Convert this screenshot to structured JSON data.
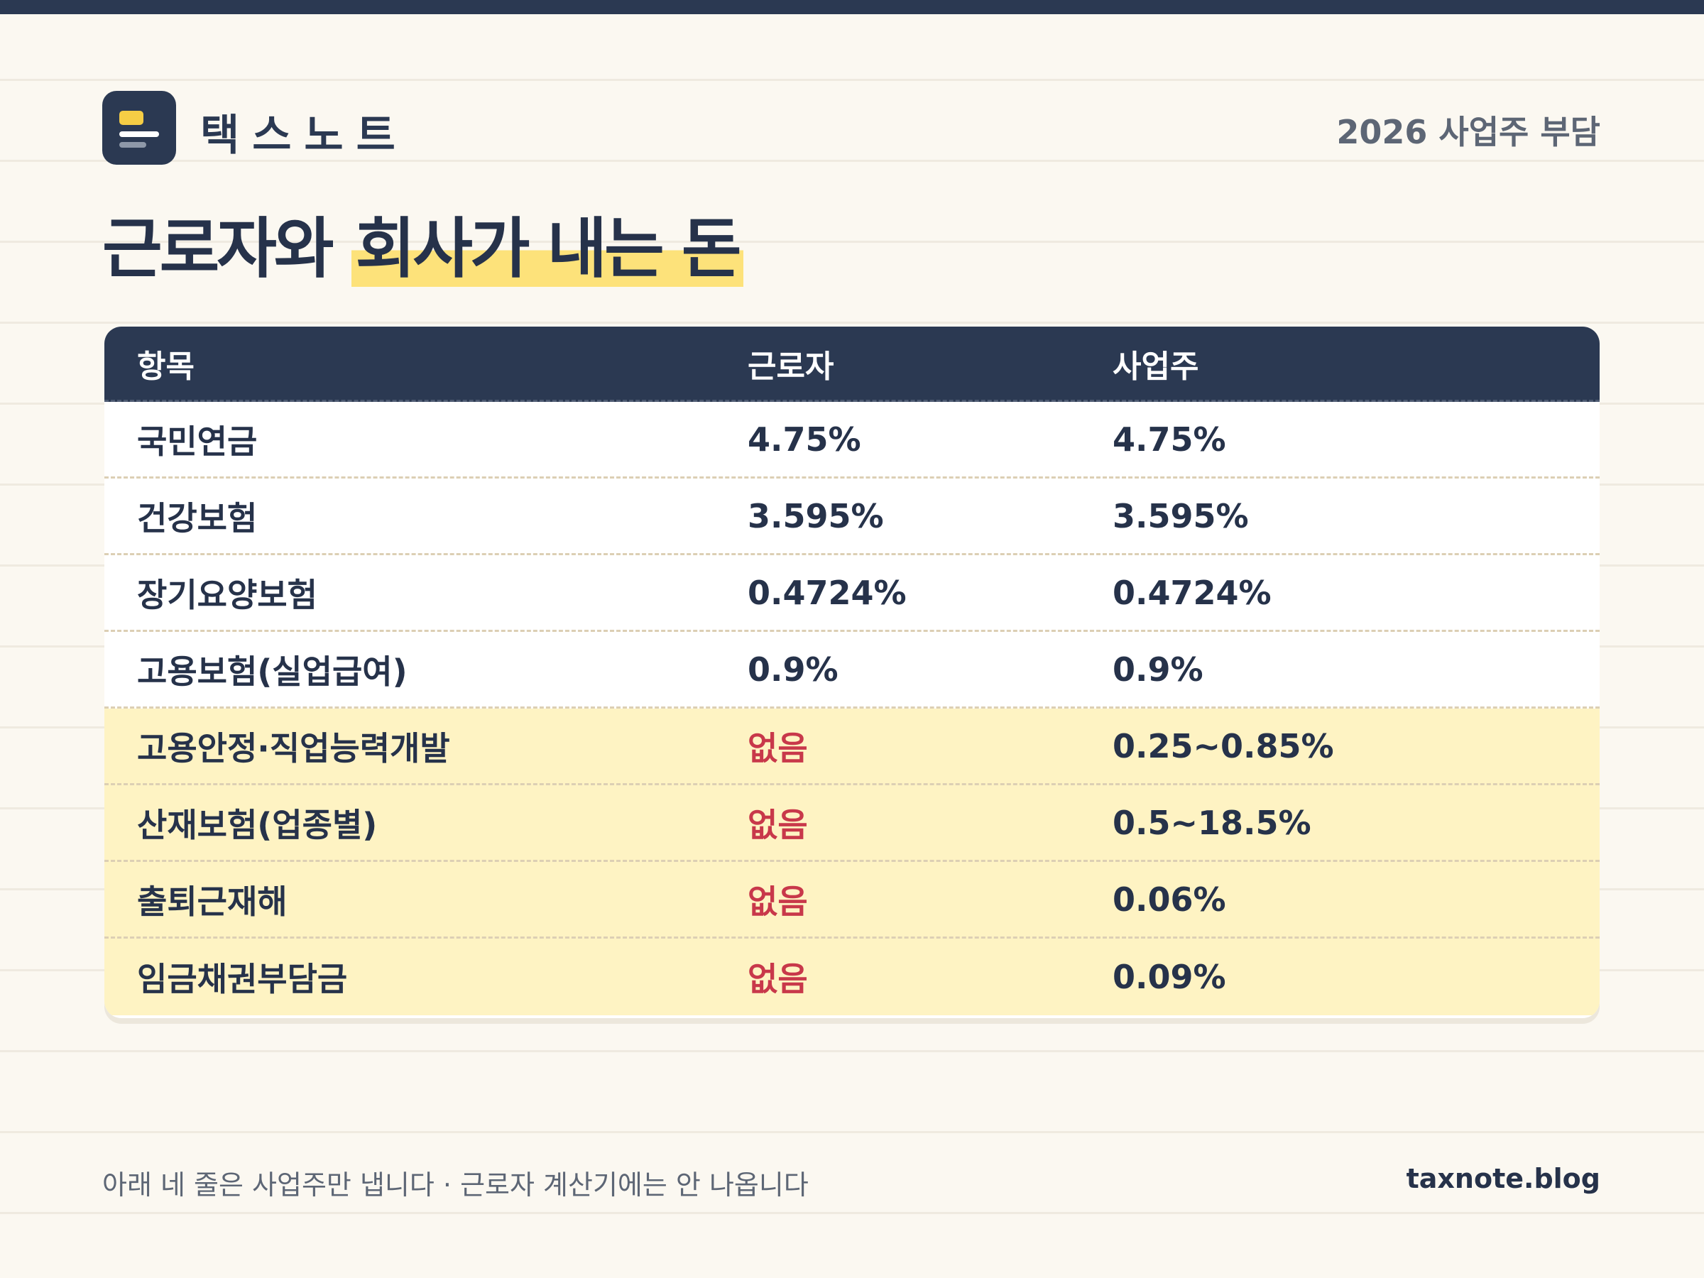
{
  "header": {
    "brand": "택스노트",
    "tag": "2026 사업주 부담"
  },
  "title": {
    "plain": "근로자와",
    "highlight": "회사가 내는 돈"
  },
  "table": {
    "columns": [
      "항목",
      "근로자",
      "사업주"
    ],
    "rows": [
      {
        "item": "국민연금",
        "employee": "4.75%",
        "employer": "4.75%"
      },
      {
        "item": "건강보험",
        "employee": "3.595%",
        "employer": "3.595%"
      },
      {
        "item": "장기요양보험",
        "employee": "0.4724%",
        "employer": "0.4724%"
      },
      {
        "item": "고용보험(실업급여)",
        "employee": "0.9%",
        "employer": "0.9%"
      },
      {
        "item": "고용안정·직업능력개발",
        "employee": "없음",
        "employer": "0.25~0.85%"
      },
      {
        "item": "산재보험(업종별)",
        "employee": "없음",
        "employer": "0.5~18.5%"
      },
      {
        "item": "출퇴근재해",
        "employee": "없음",
        "employer": "0.06%"
      },
      {
        "item": "임금채권부담금",
        "employee": "없음",
        "employer": "0.09%"
      }
    ]
  },
  "footer": {
    "note": "아래 네 줄은 사업주만 냅니다 · 근로자 계산기에는 안 나옵니다",
    "site": "taxnote.blog"
  },
  "colors": {
    "navy": "#2b3952",
    "highlight_yellow": "#fde27a",
    "employer_only_row": "#fef3c3",
    "none_red": "#c8384a"
  }
}
